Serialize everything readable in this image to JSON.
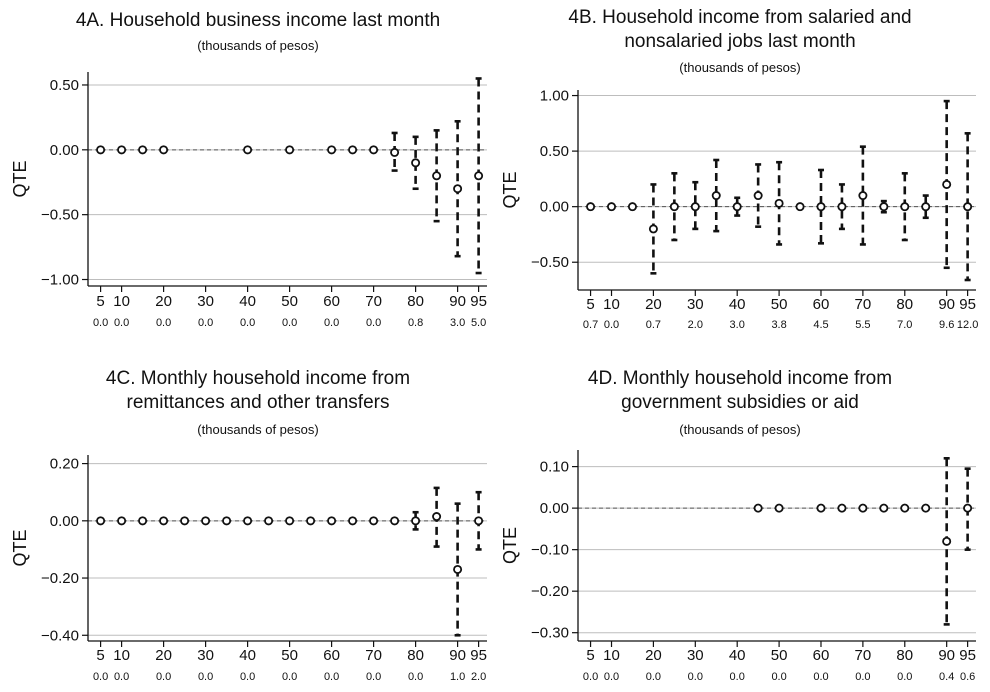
{
  "chart_data": [
    {
      "type": "scatter",
      "title": "4A. Household business income last month",
      "subtitle": "(thousands of pesos)",
      "ylabel": "QTE",
      "ylim": [
        -1.05,
        0.6
      ],
      "yticks": [
        0.5,
        0.0,
        -0.5,
        -1.0
      ],
      "ytick_labels": [
        "0.50",
        "0.00",
        "−0.50",
        "−1.00"
      ],
      "xlim": [
        2,
        97
      ],
      "xticks": [
        5,
        10,
        20,
        30,
        40,
        50,
        60,
        70,
        80,
        90,
        95
      ],
      "xtick_labels": [
        "5",
        "10",
        "20",
        "30",
        "40",
        "50",
        "60",
        "70",
        "80",
        "90",
        "95"
      ],
      "x_sublabels": [
        "0.0",
        "0.0",
        "0.0",
        "0.0",
        "0.0",
        "0.0",
        "0.0",
        "0.0",
        "0.8",
        "3.0",
        "5.0"
      ],
      "grid": true,
      "points": [
        {
          "x": 5,
          "y": 0.0,
          "lo": 0.0,
          "hi": 0.0
        },
        {
          "x": 10,
          "y": 0.0,
          "lo": 0.0,
          "hi": 0.0
        },
        {
          "x": 15,
          "y": 0.0,
          "lo": 0.0,
          "hi": 0.0
        },
        {
          "x": 20,
          "y": 0.0,
          "lo": 0.0,
          "hi": 0.0
        },
        {
          "x": 40,
          "y": 0.0,
          "lo": 0.0,
          "hi": 0.0
        },
        {
          "x": 50,
          "y": 0.0,
          "lo": 0.0,
          "hi": 0.0
        },
        {
          "x": 60,
          "y": 0.0,
          "lo": 0.0,
          "hi": 0.0
        },
        {
          "x": 65,
          "y": 0.0,
          "lo": 0.0,
          "hi": 0.0
        },
        {
          "x": 70,
          "y": 0.0,
          "lo": 0.0,
          "hi": 0.0
        },
        {
          "x": 75,
          "y": -0.02,
          "lo": -0.16,
          "hi": 0.13
        },
        {
          "x": 80,
          "y": -0.1,
          "lo": -0.3,
          "hi": 0.1
        },
        {
          "x": 85,
          "y": -0.2,
          "lo": -0.55,
          "hi": 0.15
        },
        {
          "x": 90,
          "y": -0.3,
          "lo": -0.82,
          "hi": 0.22
        },
        {
          "x": 95,
          "y": -0.2,
          "lo": -0.95,
          "hi": 0.55
        }
      ]
    },
    {
      "type": "scatter",
      "title": "4B. Household income from salaried and nonsalaried jobs last month",
      "title_lines": [
        "4B. Household income from salaried and",
        "nonsalaried jobs last month"
      ],
      "subtitle": "(thousands of pesos)",
      "ylabel": "QTE",
      "ylim": [
        -0.75,
        1.05
      ],
      "yticks": [
        1.0,
        0.5,
        0.0,
        -0.5
      ],
      "ytick_labels": [
        "1.00",
        "0.50",
        "0.00",
        "−0.50"
      ],
      "xlim": [
        2,
        97
      ],
      "xticks": [
        5,
        10,
        20,
        30,
        40,
        50,
        60,
        70,
        80,
        90,
        95
      ],
      "xtick_labels": [
        "5",
        "10",
        "20",
        "30",
        "40",
        "50",
        "60",
        "70",
        "80",
        "90",
        "95"
      ],
      "x_sublabels": [
        "0.7",
        "0.0",
        "0.7",
        "2.0",
        "3.0",
        "3.8",
        "4.5",
        "5.5",
        "7.0",
        "9.6",
        "12.0"
      ],
      "grid": true,
      "points": [
        {
          "x": 5,
          "y": 0.0,
          "lo": 0.0,
          "hi": 0.0
        },
        {
          "x": 10,
          "y": 0.0,
          "lo": 0.0,
          "hi": 0.0
        },
        {
          "x": 15,
          "y": 0.0,
          "lo": 0.0,
          "hi": 0.0
        },
        {
          "x": 20,
          "y": -0.2,
          "lo": -0.6,
          "hi": 0.2
        },
        {
          "x": 25,
          "y": 0.0,
          "lo": -0.3,
          "hi": 0.3
        },
        {
          "x": 30,
          "y": 0.0,
          "lo": -0.2,
          "hi": 0.22
        },
        {
          "x": 35,
          "y": 0.1,
          "lo": -0.22,
          "hi": 0.42
        },
        {
          "x": 40,
          "y": 0.0,
          "lo": -0.08,
          "hi": 0.08
        },
        {
          "x": 45,
          "y": 0.1,
          "lo": -0.18,
          "hi": 0.38
        },
        {
          "x": 50,
          "y": 0.03,
          "lo": -0.34,
          "hi": 0.4
        },
        {
          "x": 55,
          "y": 0.0,
          "lo": 0.0,
          "hi": 0.0
        },
        {
          "x": 60,
          "y": 0.0,
          "lo": -0.33,
          "hi": 0.33
        },
        {
          "x": 65,
          "y": 0.0,
          "lo": -0.2,
          "hi": 0.2
        },
        {
          "x": 70,
          "y": 0.1,
          "lo": -0.34,
          "hi": 0.54
        },
        {
          "x": 75,
          "y": 0.0,
          "lo": -0.05,
          "hi": 0.05
        },
        {
          "x": 80,
          "y": 0.0,
          "lo": -0.3,
          "hi": 0.3
        },
        {
          "x": 85,
          "y": 0.0,
          "lo": -0.1,
          "hi": 0.1
        },
        {
          "x": 90,
          "y": 0.2,
          "lo": -0.55,
          "hi": 0.95
        },
        {
          "x": 95,
          "y": 0.0,
          "lo": -0.66,
          "hi": 0.66
        }
      ]
    },
    {
      "type": "scatter",
      "title": "4C. Monthly household income from remittances and other transfers",
      "title_lines": [
        "4C. Monthly household income from",
        "remittances and other transfers"
      ],
      "subtitle": "(thousands of pesos)",
      "ylabel": "QTE",
      "ylim": [
        -0.42,
        0.23
      ],
      "yticks": [
        0.2,
        0.0,
        -0.2,
        -0.4
      ],
      "ytick_labels": [
        "0.20",
        "0.00",
        "−0.20",
        "−0.40"
      ],
      "xlim": [
        2,
        97
      ],
      "xticks": [
        5,
        10,
        20,
        30,
        40,
        50,
        60,
        70,
        80,
        90,
        95
      ],
      "xtick_labels": [
        "5",
        "10",
        "20",
        "30",
        "40",
        "50",
        "60",
        "70",
        "80",
        "90",
        "95"
      ],
      "x_sublabels": [
        "0.0",
        "0.0",
        "0.0",
        "0.0",
        "0.0",
        "0.0",
        "0.0",
        "0.0",
        "0.0",
        "1.0",
        "2.0"
      ],
      "grid": true,
      "points": [
        {
          "x": 5,
          "y": 0.0,
          "lo": 0.0,
          "hi": 0.0
        },
        {
          "x": 10,
          "y": 0.0,
          "lo": 0.0,
          "hi": 0.0
        },
        {
          "x": 15,
          "y": 0.0,
          "lo": 0.0,
          "hi": 0.0
        },
        {
          "x": 20,
          "y": 0.0,
          "lo": 0.0,
          "hi": 0.0
        },
        {
          "x": 25,
          "y": 0.0,
          "lo": 0.0,
          "hi": 0.0
        },
        {
          "x": 30,
          "y": 0.0,
          "lo": 0.0,
          "hi": 0.0
        },
        {
          "x": 35,
          "y": 0.0,
          "lo": 0.0,
          "hi": 0.0
        },
        {
          "x": 40,
          "y": 0.0,
          "lo": 0.0,
          "hi": 0.0
        },
        {
          "x": 45,
          "y": 0.0,
          "lo": 0.0,
          "hi": 0.0
        },
        {
          "x": 50,
          "y": 0.0,
          "lo": 0.0,
          "hi": 0.0
        },
        {
          "x": 55,
          "y": 0.0,
          "lo": 0.0,
          "hi": 0.0
        },
        {
          "x": 60,
          "y": 0.0,
          "lo": 0.0,
          "hi": 0.0
        },
        {
          "x": 65,
          "y": 0.0,
          "lo": 0.0,
          "hi": 0.0
        },
        {
          "x": 70,
          "y": 0.0,
          "lo": 0.0,
          "hi": 0.0
        },
        {
          "x": 75,
          "y": 0.0,
          "lo": 0.0,
          "hi": 0.0
        },
        {
          "x": 80,
          "y": 0.0,
          "lo": -0.03,
          "hi": 0.03
        },
        {
          "x": 85,
          "y": 0.015,
          "lo": -0.09,
          "hi": 0.115
        },
        {
          "x": 90,
          "y": -0.17,
          "lo": -0.4,
          "hi": 0.06
        },
        {
          "x": 95,
          "y": 0.0,
          "lo": -0.1,
          "hi": 0.1
        }
      ]
    },
    {
      "type": "scatter",
      "title": "4D. Monthly household income from government subsidies or aid",
      "title_lines": [
        "4D. Monthly household income from",
        "government subsidies or aid"
      ],
      "subtitle": "(thousands of pesos)",
      "ylabel": "QTE",
      "ylim": [
        -0.32,
        0.14
      ],
      "yticks": [
        0.1,
        0.0,
        -0.1,
        -0.2,
        -0.3
      ],
      "ytick_labels": [
        "0.10",
        "0.00",
        "−0.10",
        "−0.20",
        "−0.30"
      ],
      "xlim": [
        2,
        97
      ],
      "xticks": [
        5,
        10,
        20,
        30,
        40,
        50,
        60,
        70,
        80,
        90,
        95
      ],
      "xtick_labels": [
        "5",
        "10",
        "20",
        "30",
        "40",
        "50",
        "60",
        "70",
        "80",
        "90",
        "95"
      ],
      "x_sublabels": [
        "0.0",
        "0.0",
        "0.0",
        "0.0",
        "0.0",
        "0.0",
        "0.0",
        "0.0",
        "0.0",
        "0.4",
        "0.6"
      ],
      "grid": true,
      "points": [
        {
          "x": 45,
          "y": 0.0,
          "lo": 0.0,
          "hi": 0.0
        },
        {
          "x": 50,
          "y": 0.0,
          "lo": 0.0,
          "hi": 0.0
        },
        {
          "x": 60,
          "y": 0.0,
          "lo": 0.0,
          "hi": 0.0
        },
        {
          "x": 65,
          "y": 0.0,
          "lo": 0.0,
          "hi": 0.0
        },
        {
          "x": 70,
          "y": 0.0,
          "lo": 0.0,
          "hi": 0.0
        },
        {
          "x": 75,
          "y": 0.0,
          "lo": 0.0,
          "hi": 0.0
        },
        {
          "x": 80,
          "y": 0.0,
          "lo": 0.0,
          "hi": 0.0
        },
        {
          "x": 85,
          "y": 0.0,
          "lo": 0.0,
          "hi": 0.0
        },
        {
          "x": 90,
          "y": -0.08,
          "lo": -0.28,
          "hi": 0.12
        },
        {
          "x": 95,
          "y": 0.0,
          "lo": -0.1,
          "hi": 0.095
        }
      ]
    }
  ]
}
